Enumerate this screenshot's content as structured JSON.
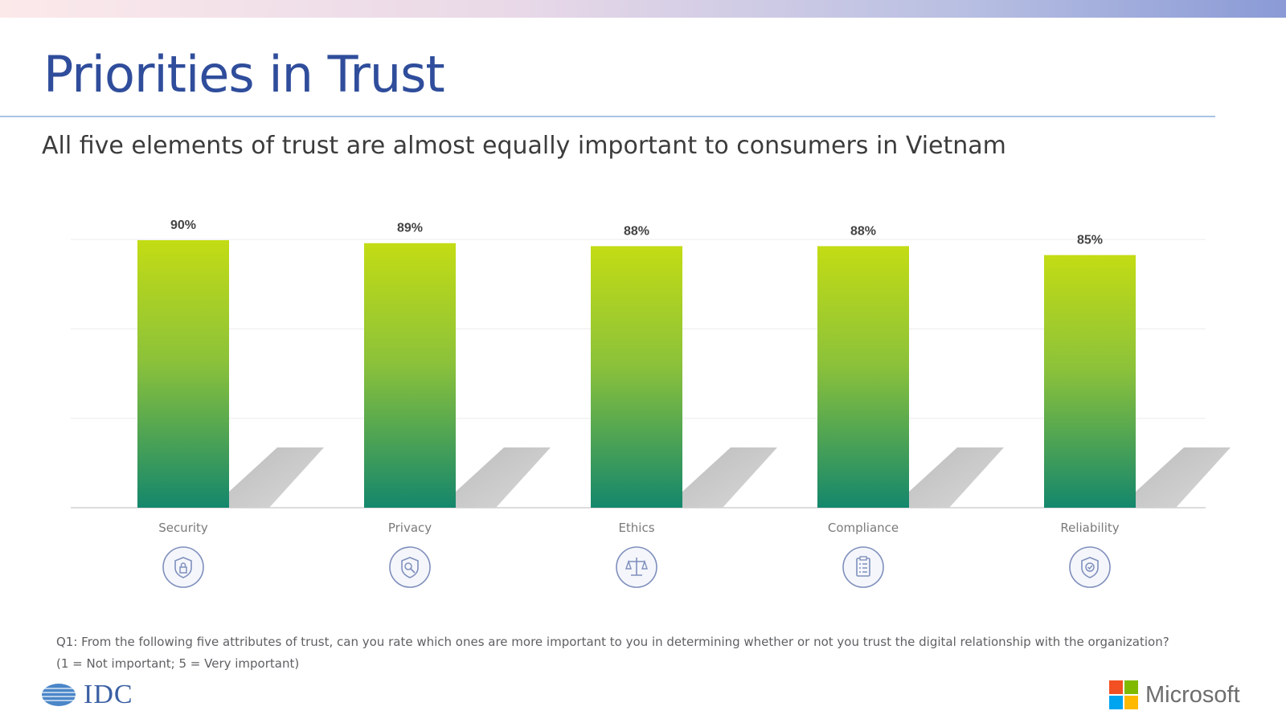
{
  "header": {
    "title": "Priorities in Trust",
    "subtitle": "All five elements of trust are almost equally important to consumers in Vietnam"
  },
  "chart_data": {
    "type": "bar",
    "categories": [
      "Security",
      "Privacy",
      "Ethics",
      "Compliance",
      "Reliability"
    ],
    "values": [
      90,
      89,
      88,
      88,
      85
    ],
    "value_labels": [
      "90%",
      "89%",
      "88%",
      "88%",
      "85%"
    ],
    "unit": "%",
    "title": "",
    "xlabel": "",
    "ylabel": "",
    "ylim": [
      0,
      100
    ],
    "grid": true,
    "legend": "none",
    "bar_gradient": {
      "top": "#c3dc14",
      "bottom": "#14876c"
    }
  },
  "icons": [
    "shield-lock-icon",
    "shield-key-icon",
    "scales-icon",
    "clipboard-checklist-icon",
    "shield-badge-icon"
  ],
  "footer": {
    "question_line1": "Q1: From the following five attributes of trust, can you rate which ones are more important to you in determining whether or not you trust the digital relationship with the organization?",
    "question_line2": "(1 = Not important; 5 = Very important)",
    "idc_name": "IDC",
    "microsoft_name": "Microsoft"
  },
  "colors": {
    "title": "#2f4d9b",
    "icon": "#7f8fbd",
    "ms_red": "#f25022",
    "ms_green": "#7fba00",
    "ms_blue": "#00a4ef",
    "ms_yellow": "#ffb900"
  }
}
